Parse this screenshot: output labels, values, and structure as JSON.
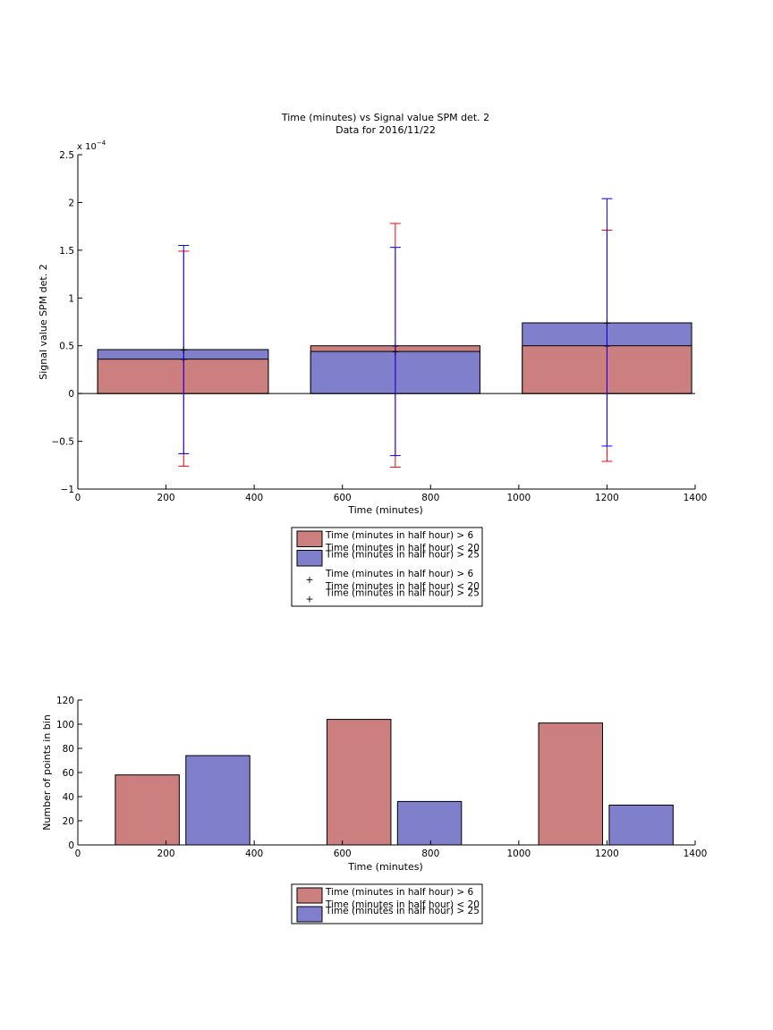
{
  "colors": {
    "series1_fill": "#cc7f7f",
    "series2_fill": "#7f7fcc",
    "err1": "#ff0000",
    "err2": "#0000ff",
    "axis": "#000000"
  },
  "chart_data": [
    {
      "type": "bar",
      "title": "Time (minutes) vs Signal value SPM det. 2",
      "subtitle": "Data for 2016/11/22",
      "xlabel": "Time (minutes)",
      "ylabel": "Signal value SPM det. 2",
      "exponent_base": "x 10",
      "exponent_power": "−4",
      "xlim": [
        0,
        1400
      ],
      "ylim": [
        -1,
        2.5
      ],
      "y_scale_factor": 0.0001,
      "xticks": [
        "0",
        "200",
        "400",
        "600",
        "800",
        "1000",
        "1200",
        "1400"
      ],
      "yticks": [
        "−1",
        "−0.5",
        "0",
        "0.5",
        "1",
        "1.5",
        "2",
        "2.5"
      ],
      "bar_mode": "overlay",
      "bins": [
        {
          "x_from": 45,
          "x_to": 432,
          "center": 240
        },
        {
          "x_from": 528,
          "x_to": 912,
          "center": 720
        },
        {
          "x_from": 1008,
          "x_to": 1392,
          "center": 1200
        }
      ],
      "series": [
        {
          "name": "Time (minutes in half hour) > 6\nTime (minutes in half hour) < 20",
          "values": [
            0.36,
            0.5,
            0.5
          ],
          "err_low": [
            -0.76,
            -0.77,
            -0.71
          ],
          "err_high": [
            1.49,
            1.78,
            1.71
          ]
        },
        {
          "name": "Time (minutes in half hour) > 25",
          "values": [
            0.46,
            0.44,
            0.74
          ],
          "err_low": [
            -0.63,
            -0.65,
            -0.55
          ],
          "err_high": [
            1.55,
            1.53,
            2.04
          ]
        }
      ],
      "legend": [
        {
          "line1": "Time (minutes in half hour) > 6",
          "line2": "Time (minutes in half hour) < 20"
        },
        {
          "line1": "Time (minutes in half hour) > 25",
          "line2": ""
        },
        {
          "line1": "Time (minutes in half hour) > 6",
          "line2": "Time (minutes in half hour) < 20"
        },
        {
          "line1": "Time (minutes in half hour) > 25",
          "line2": ""
        }
      ],
      "legend_placement": "below"
    },
    {
      "type": "bar",
      "xlabel": "Time (minutes)",
      "ylabel": "Number of points in bin",
      "xlim": [
        0,
        1400
      ],
      "ylim": [
        0,
        120
      ],
      "xticks": [
        "0",
        "200",
        "400",
        "600",
        "800",
        "1000",
        "1200",
        "1400"
      ],
      "yticks": [
        "0",
        "20",
        "40",
        "60",
        "80",
        "100",
        "120"
      ],
      "bar_mode": "grouped",
      "bars": [
        {
          "series": 1,
          "x_from": 85,
          "x_to": 230,
          "value": 58
        },
        {
          "series": 2,
          "x_from": 245,
          "x_to": 390,
          "value": 74
        },
        {
          "series": 1,
          "x_from": 565,
          "x_to": 710,
          "value": 104
        },
        {
          "series": 2,
          "x_from": 725,
          "x_to": 870,
          "value": 36
        },
        {
          "series": 1,
          "x_from": 1045,
          "x_to": 1190,
          "value": 101
        },
        {
          "series": 2,
          "x_from": 1205,
          "x_to": 1350,
          "value": 33
        }
      ],
      "legend": [
        {
          "line1": "Time (minutes in half hour) > 6",
          "line2": "Time (minutes in half hour) < 20"
        },
        {
          "line1": "Time (minutes in half hour) > 25",
          "line2": ""
        }
      ],
      "legend_placement": "below"
    }
  ]
}
